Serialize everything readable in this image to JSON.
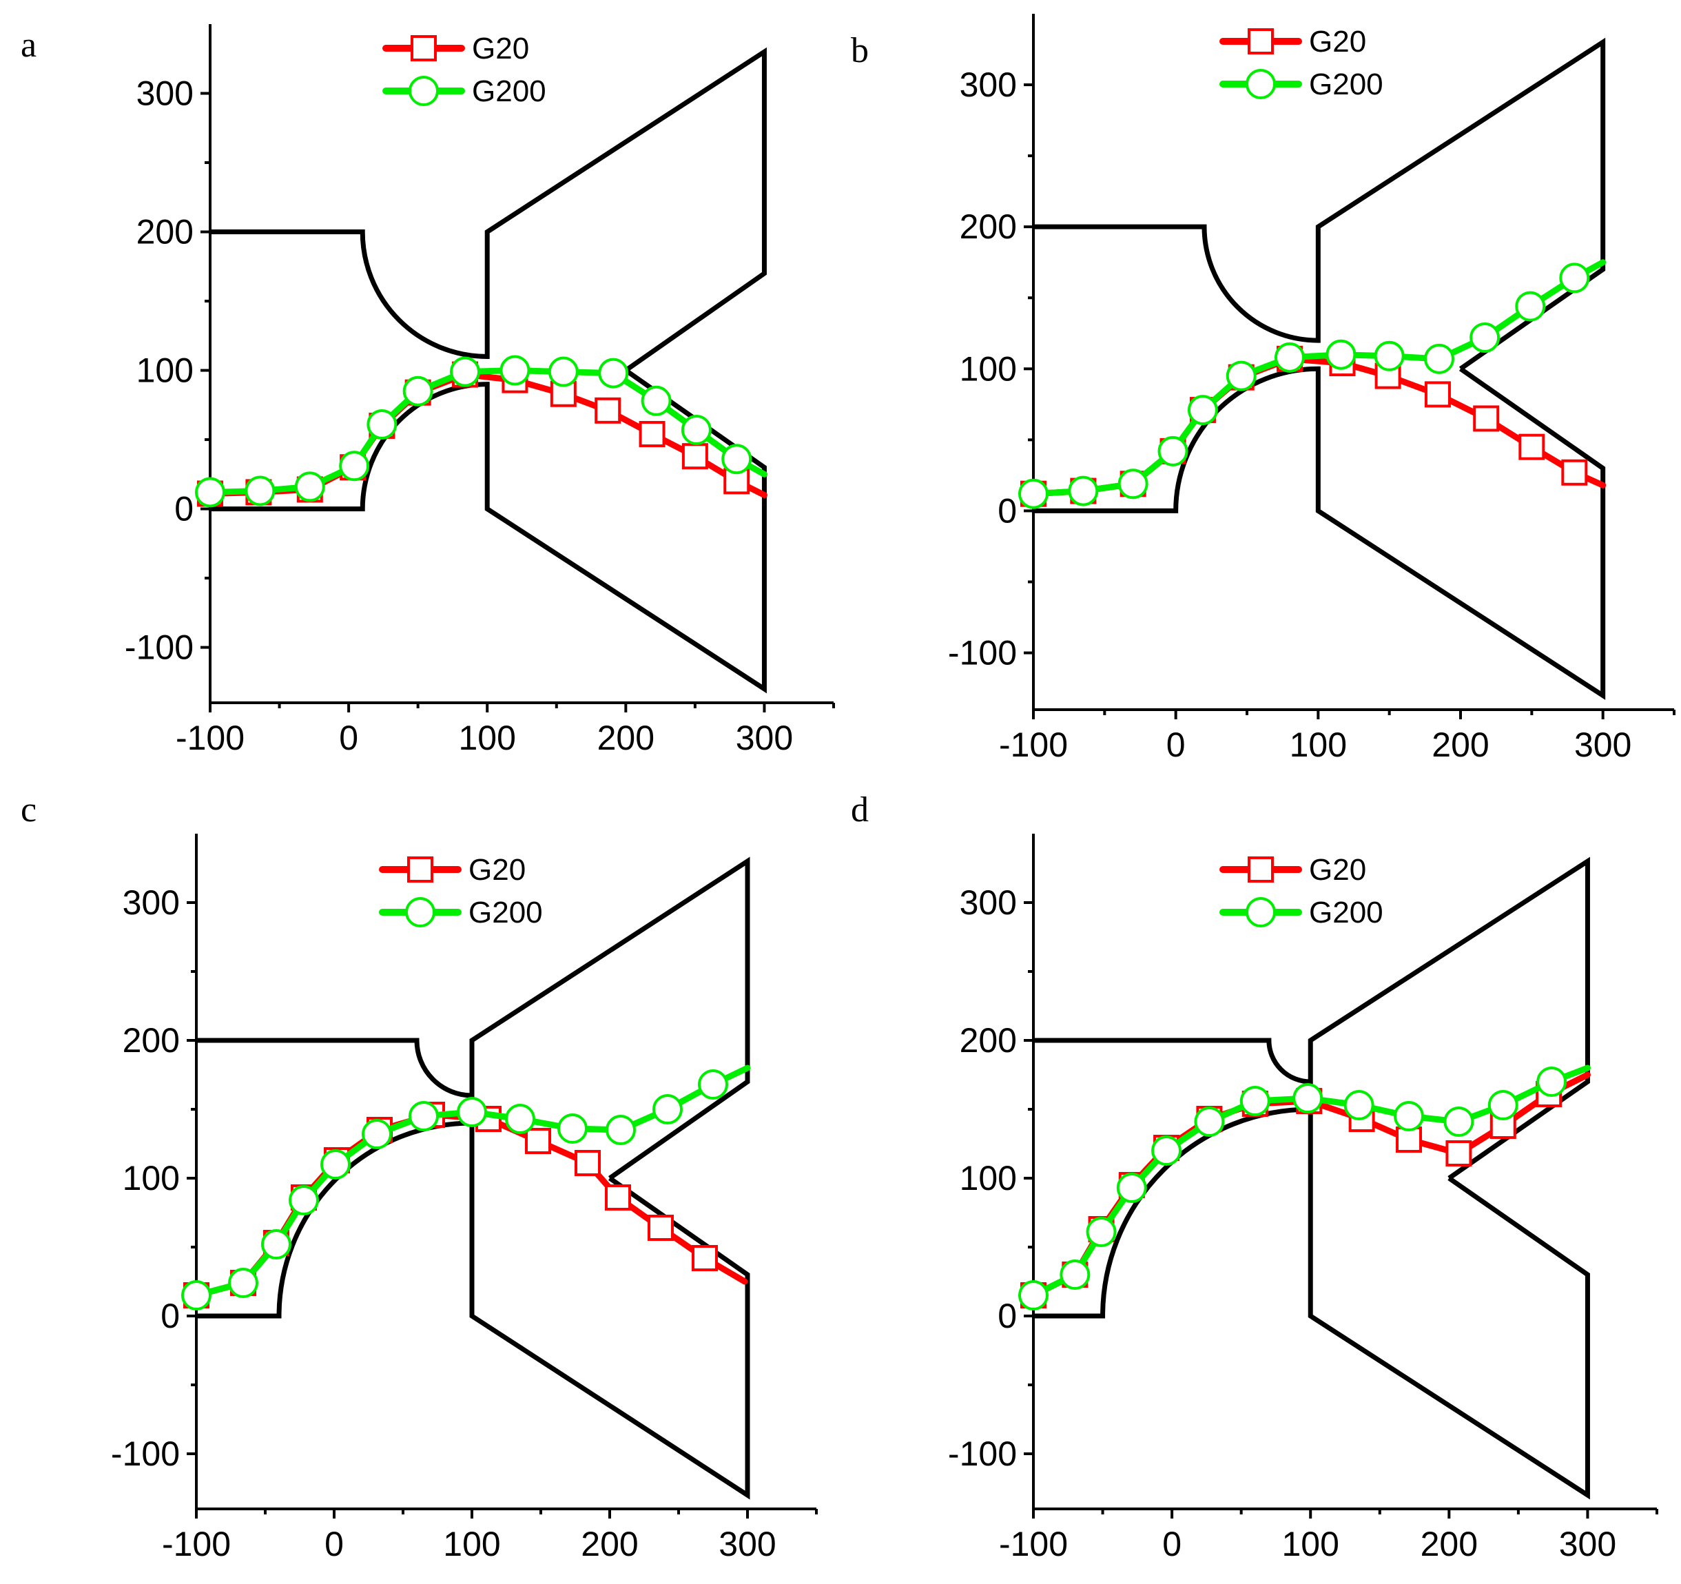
{
  "figure": {
    "colors": {
      "g20": "#ff0000",
      "g200": "#00ee00",
      "geometry": "#000000"
    },
    "legend": {
      "series": [
        "G20",
        "G200"
      ],
      "placement": "top-center"
    }
  },
  "chart_data": [
    {
      "panel": "a",
      "type": "line",
      "title": "",
      "xlabel": "",
      "ylabel": "",
      "xlim": [
        -100,
        350
      ],
      "ylim": [
        -140,
        350
      ],
      "x_ticks": [
        -100,
        0,
        100,
        200,
        300
      ],
      "y_ticks": [
        -100,
        0,
        100,
        200,
        300
      ],
      "geometry": [
        [
          [
            -100,
            200
          ],
          [
            10,
            200
          ],
          {
            "arc": {
              "cx": 100,
              "cy": 200,
              "r": 90,
              "from": "left",
              "to": "bottom"
            }
          },
          [
            100,
            110
          ],
          [
            100,
            200
          ],
          [
            300,
            330
          ],
          [
            300,
            170
          ],
          [
            200,
            100
          ]
        ],
        [
          [
            -100,
            0
          ],
          [
            10,
            0
          ],
          {
            "arc": {
              "cx": 100,
              "cy": 0,
              "r": 90,
              "from": "left",
              "to": "top"
            }
          },
          [
            100,
            90
          ],
          [
            100,
            0
          ],
          [
            300,
            -130
          ],
          [
            300,
            30
          ],
          [
            200,
            100
          ]
        ]
      ],
      "series": [
        {
          "name": "G20",
          "marker": "square",
          "points": [
            [
              -100,
              11
            ],
            [
              -65,
              12
            ],
            [
              -28,
              14
            ],
            [
              3,
              30
            ],
            [
              24,
              60
            ],
            [
              50,
              84
            ],
            [
              84,
              97
            ],
            [
              120,
              93
            ],
            [
              155,
              83
            ],
            [
              187,
              71
            ],
            [
              219,
              54
            ],
            [
              250,
              38
            ],
            [
              280,
              20
            ],
            [
              300,
              10
            ]
          ]
        },
        {
          "name": "G200",
          "marker": "circle",
          "points": [
            [
              -100,
              12
            ],
            [
              -64,
              13
            ],
            [
              -28,
              16
            ],
            [
              4,
              31
            ],
            [
              24,
              61
            ],
            [
              50,
              85
            ],
            [
              84,
              99
            ],
            [
              120,
              100
            ],
            [
              155,
              99
            ],
            [
              191,
              98
            ],
            [
              222,
              78
            ],
            [
              251,
              57
            ],
            [
              280,
              36
            ],
            [
              300,
              25
            ]
          ]
        }
      ]
    },
    {
      "panel": "b",
      "type": "line",
      "title": "",
      "xlabel": "",
      "ylabel": "",
      "xlim": [
        -100,
        350
      ],
      "ylim": [
        -140,
        350
      ],
      "x_ticks": [
        -100,
        0,
        100,
        200,
        300
      ],
      "y_ticks": [
        -100,
        0,
        100,
        200,
        300
      ],
      "geometry": [
        [
          [
            -100,
            200
          ],
          [
            20,
            200
          ],
          {
            "arc": {
              "cx": 100,
              "cy": 200,
              "r": 80,
              "from": "left",
              "to": "bottom"
            }
          },
          [
            100,
            120
          ],
          [
            100,
            200
          ],
          [
            300,
            330
          ],
          [
            300,
            170
          ],
          [
            200,
            100
          ]
        ],
        [
          [
            -100,
            0
          ],
          [
            0,
            0
          ],
          {
            "arc": {
              "cx": 100,
              "cy": 0,
              "r": 100,
              "from": "left",
              "to": "top"
            }
          },
          [
            100,
            100
          ],
          [
            100,
            0
          ],
          [
            300,
            -130
          ],
          [
            300,
            30
          ],
          [
            200,
            100
          ]
        ]
      ],
      "series": [
        {
          "name": "G20",
          "marker": "square",
          "points": [
            [
              -100,
              12
            ],
            [
              -65,
              14
            ],
            [
              -30,
              19
            ],
            [
              -2,
              42
            ],
            [
              19,
              71
            ],
            [
              46,
              94
            ],
            [
              80,
              107
            ],
            [
              117,
              104
            ],
            [
              149,
              95
            ],
            [
              184,
              82
            ],
            [
              218,
              65
            ],
            [
              250,
              45
            ],
            [
              280,
              27
            ],
            [
              300,
              18
            ]
          ]
        },
        {
          "name": "G200",
          "marker": "circle",
          "points": [
            [
              -100,
              12
            ],
            [
              -65,
              14
            ],
            [
              -30,
              19
            ],
            [
              -2,
              42
            ],
            [
              19,
              71
            ],
            [
              46,
              95
            ],
            [
              80,
              108
            ],
            [
              116,
              110
            ],
            [
              150,
              109
            ],
            [
              185,
              107
            ],
            [
              217,
              122
            ],
            [
              249,
              144
            ],
            [
              280,
              164
            ],
            [
              300,
              175
            ]
          ]
        }
      ]
    },
    {
      "panel": "c",
      "type": "line",
      "title": "",
      "xlabel": "",
      "ylabel": "",
      "xlim": [
        -100,
        350
      ],
      "ylim": [
        -140,
        350
      ],
      "x_ticks": [
        -100,
        0,
        100,
        200,
        300
      ],
      "y_ticks": [
        -100,
        0,
        100,
        200,
        300
      ],
      "geometry": [
        [
          [
            -100,
            200
          ],
          [
            60,
            200
          ],
          {
            "arc": {
              "cx": 100,
              "cy": 200,
              "r": 40,
              "from": "left",
              "to": "bottom"
            }
          },
          [
            100,
            160
          ],
          [
            100,
            200
          ],
          [
            300,
            330
          ],
          [
            300,
            170
          ],
          [
            200,
            100
          ]
        ],
        [
          [
            -100,
            0
          ],
          [
            -40,
            0
          ],
          {
            "arc": {
              "cx": 100,
              "cy": 0,
              "r": 140,
              "from": "left",
              "to": "top"
            }
          },
          [
            100,
            140
          ],
          [
            100,
            0
          ],
          [
            300,
            -130
          ],
          [
            300,
            30
          ],
          [
            200,
            100
          ]
        ]
      ],
      "series": [
        {
          "name": "G20",
          "marker": "square",
          "points": [
            [
              -100,
              15
            ],
            [
              -66,
              24
            ],
            [
              -42,
              53
            ],
            [
              -22,
              86
            ],
            [
              2,
              113
            ],
            [
              33,
              135
            ],
            [
              71,
              146
            ],
            [
              112,
              143
            ],
            [
              148,
              127
            ],
            [
              184,
              111
            ],
            [
              206,
              86
            ],
            [
              237,
              64
            ],
            [
              269,
              42
            ],
            [
              298,
              25
            ]
          ]
        },
        {
          "name": "G200",
          "marker": "circle",
          "points": [
            [
              -100,
              15
            ],
            [
              -66,
              24
            ],
            [
              -42,
              52
            ],
            [
              -22,
              84
            ],
            [
              1,
              110
            ],
            [
              31,
              132
            ],
            [
              65,
              145
            ],
            [
              100,
              148
            ],
            [
              135,
              143
            ],
            [
              173,
              136
            ],
            [
              208,
              135
            ],
            [
              242,
              150
            ],
            [
              275,
              168
            ],
            [
              300,
              180
            ]
          ]
        }
      ]
    },
    {
      "panel": "d",
      "type": "line",
      "title": "",
      "xlabel": "",
      "ylabel": "",
      "xlim": [
        -100,
        350
      ],
      "ylim": [
        -140,
        350
      ],
      "x_ticks": [
        -100,
        0,
        100,
        200,
        300
      ],
      "y_ticks": [
        -100,
        0,
        100,
        200,
        300
      ],
      "geometry": [
        [
          [
            -100,
            200
          ],
          [
            70,
            200
          ],
          {
            "arc": {
              "cx": 100,
              "cy": 200,
              "r": 30,
              "from": "left",
              "to": "bottom"
            }
          },
          [
            100,
            170
          ],
          [
            100,
            200
          ],
          [
            300,
            330
          ],
          [
            300,
            170
          ],
          [
            200,
            100
          ]
        ],
        [
          [
            -100,
            0
          ],
          [
            -50,
            0
          ],
          {
            "arc": {
              "cx": 100,
              "cy": 0,
              "r": 150,
              "from": "left",
              "to": "top"
            }
          },
          [
            100,
            150
          ],
          [
            100,
            0
          ],
          [
            300,
            -130
          ],
          [
            300,
            30
          ],
          [
            200,
            100
          ]
        ]
      ],
      "series": [
        {
          "name": "G20",
          "marker": "square",
          "points": [
            [
              -100,
              15
            ],
            [
              -70,
              30
            ],
            [
              -51,
              63
            ],
            [
              -29,
              95
            ],
            [
              -4,
              122
            ],
            [
              27,
              143
            ],
            [
              60,
              154
            ],
            [
              99,
              156
            ],
            [
              137,
              143
            ],
            [
              171,
              128
            ],
            [
              207,
              118
            ],
            [
              239,
              138
            ],
            [
              272,
              161
            ],
            [
              300,
              175
            ]
          ]
        },
        {
          "name": "G200",
          "marker": "circle",
          "points": [
            [
              -100,
              15
            ],
            [
              -70,
              30
            ],
            [
              -51,
              61
            ],
            [
              -29,
              93
            ],
            [
              -4,
              120
            ],
            [
              27,
              141
            ],
            [
              60,
              156
            ],
            [
              98,
              158
            ],
            [
              135,
              153
            ],
            [
              171,
              145
            ],
            [
              207,
              141
            ],
            [
              239,
              153
            ],
            [
              274,
              170
            ],
            [
              300,
              180
            ]
          ]
        }
      ]
    }
  ]
}
